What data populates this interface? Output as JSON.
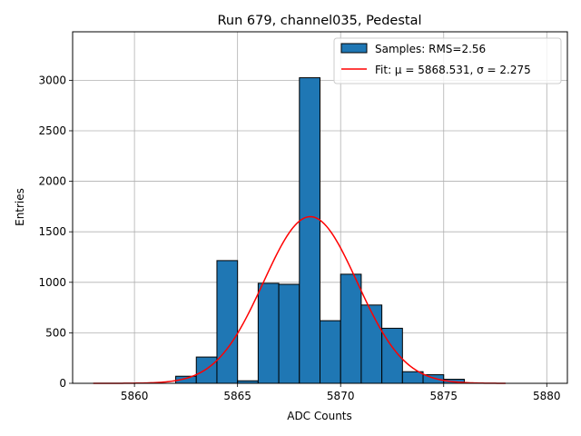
{
  "chart_data": {
    "type": "bar",
    "title": "Run 679, channel035, Pedestal",
    "xlabel": "ADC Counts",
    "ylabel": "Entries",
    "xlim": [
      5857,
      5881
    ],
    "ylim": [
      0,
      3480
    ],
    "x_ticks": [
      5860,
      5865,
      5870,
      5875,
      5880
    ],
    "x_tick_labels": [
      "5860",
      "5865",
      "5870",
      "5875",
      "5880"
    ],
    "y_ticks": [
      0,
      500,
      1000,
      1500,
      2000,
      2500,
      3000
    ],
    "y_tick_labels": [
      "0",
      "500",
      "1000",
      "1500",
      "2000",
      "2500",
      "3000"
    ],
    "grid": true,
    "legend_placement": "top-right",
    "bins": {
      "edges": [
        5858,
        5859,
        5860,
        5861,
        5862,
        5863,
        5864,
        5865,
        5866,
        5867,
        5868,
        5869,
        5870,
        5871,
        5872,
        5873,
        5874,
        5875,
        5876,
        5877,
        5878
      ],
      "values": [
        0,
        0,
        0,
        0,
        70,
        260,
        1215,
        25,
        990,
        980,
        3025,
        620,
        1080,
        775,
        545,
        115,
        85,
        40,
        0,
        0
      ],
      "name": "Samples: RMS=2.56",
      "color": "#1f77b4"
    },
    "fit": {
      "name_prefix": "Fit: ",
      "mu": 5868.531,
      "sigma": 2.275,
      "amplitude": 1650,
      "x_range": [
        5858,
        5878
      ],
      "color": "#ff0000"
    },
    "legend": [
      {
        "label": "Samples: RMS=2.56",
        "kind": "patch"
      },
      {
        "label": "Fit: μ = 5868.531, σ = 2.275",
        "kind": "line"
      }
    ]
  }
}
